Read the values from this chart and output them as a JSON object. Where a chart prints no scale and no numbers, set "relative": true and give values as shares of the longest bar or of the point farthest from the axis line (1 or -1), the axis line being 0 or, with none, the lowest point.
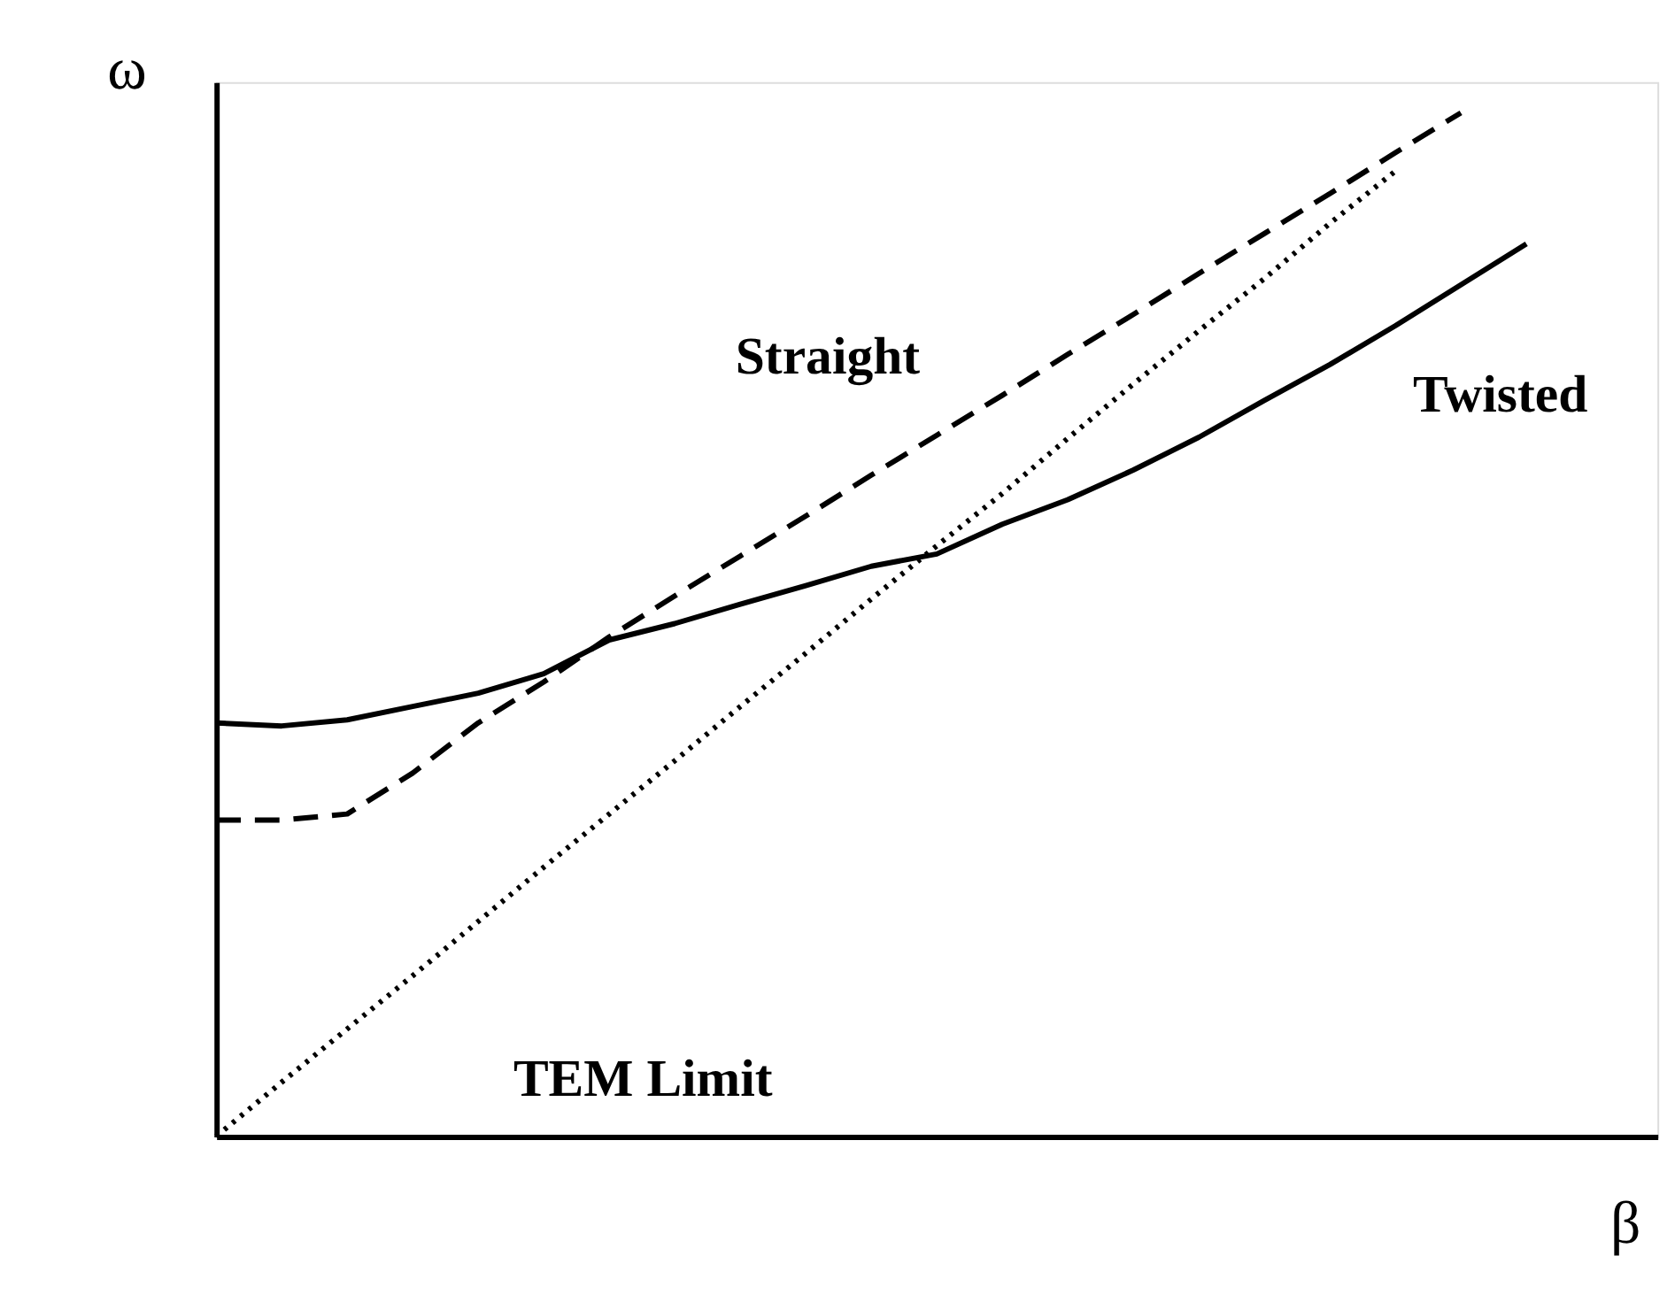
{
  "chart_data": {
    "type": "line",
    "relative": true,
    "xlabel": "β",
    "ylabel": "ω",
    "grid": false,
    "tick_labels": false,
    "categories": [
      null,
      null,
      null,
      null,
      null,
      null,
      null,
      null,
      null,
      null,
      null,
      null,
      null,
      null,
      null,
      null,
      null,
      null,
      null,
      null,
      null
    ],
    "series": [
      {
        "name": "Twisted",
        "color": "#000000",
        "line_style": "solid",
        "values": [
          0.404,
          0.401,
          0.407,
          0.42,
          0.433,
          0.452,
          0.485,
          0.501,
          0.52,
          0.538,
          0.557,
          0.569,
          0.598,
          0.622,
          0.651,
          0.683,
          0.719,
          0.754,
          0.792,
          0.832,
          0.872
        ]
      },
      {
        "name": "Straight",
        "color": "#000000",
        "line_style": "dashed",
        "values": [
          0.309,
          0.309,
          0.315,
          0.355,
          0.404,
          0.444,
          0.488,
          0.528,
          0.567,
          0.606,
          0.646,
          0.685,
          0.724,
          0.764,
          0.803,
          0.843,
          0.882,
          0.921,
          0.961,
          1,
          null
        ]
      },
      {
        "name": "TEM Limit",
        "color": "#000000",
        "line_style": "dotted",
        "values": [
          0,
          0.053,
          0.105,
          0.157,
          0.21,
          0.263,
          0.315,
          0.367,
          0.42,
          0.472,
          0.525,
          0.577,
          0.628,
          0.682,
          0.735,
          0.787,
          0.838,
          0.892,
          0.943,
          null,
          null
        ]
      }
    ]
  }
}
